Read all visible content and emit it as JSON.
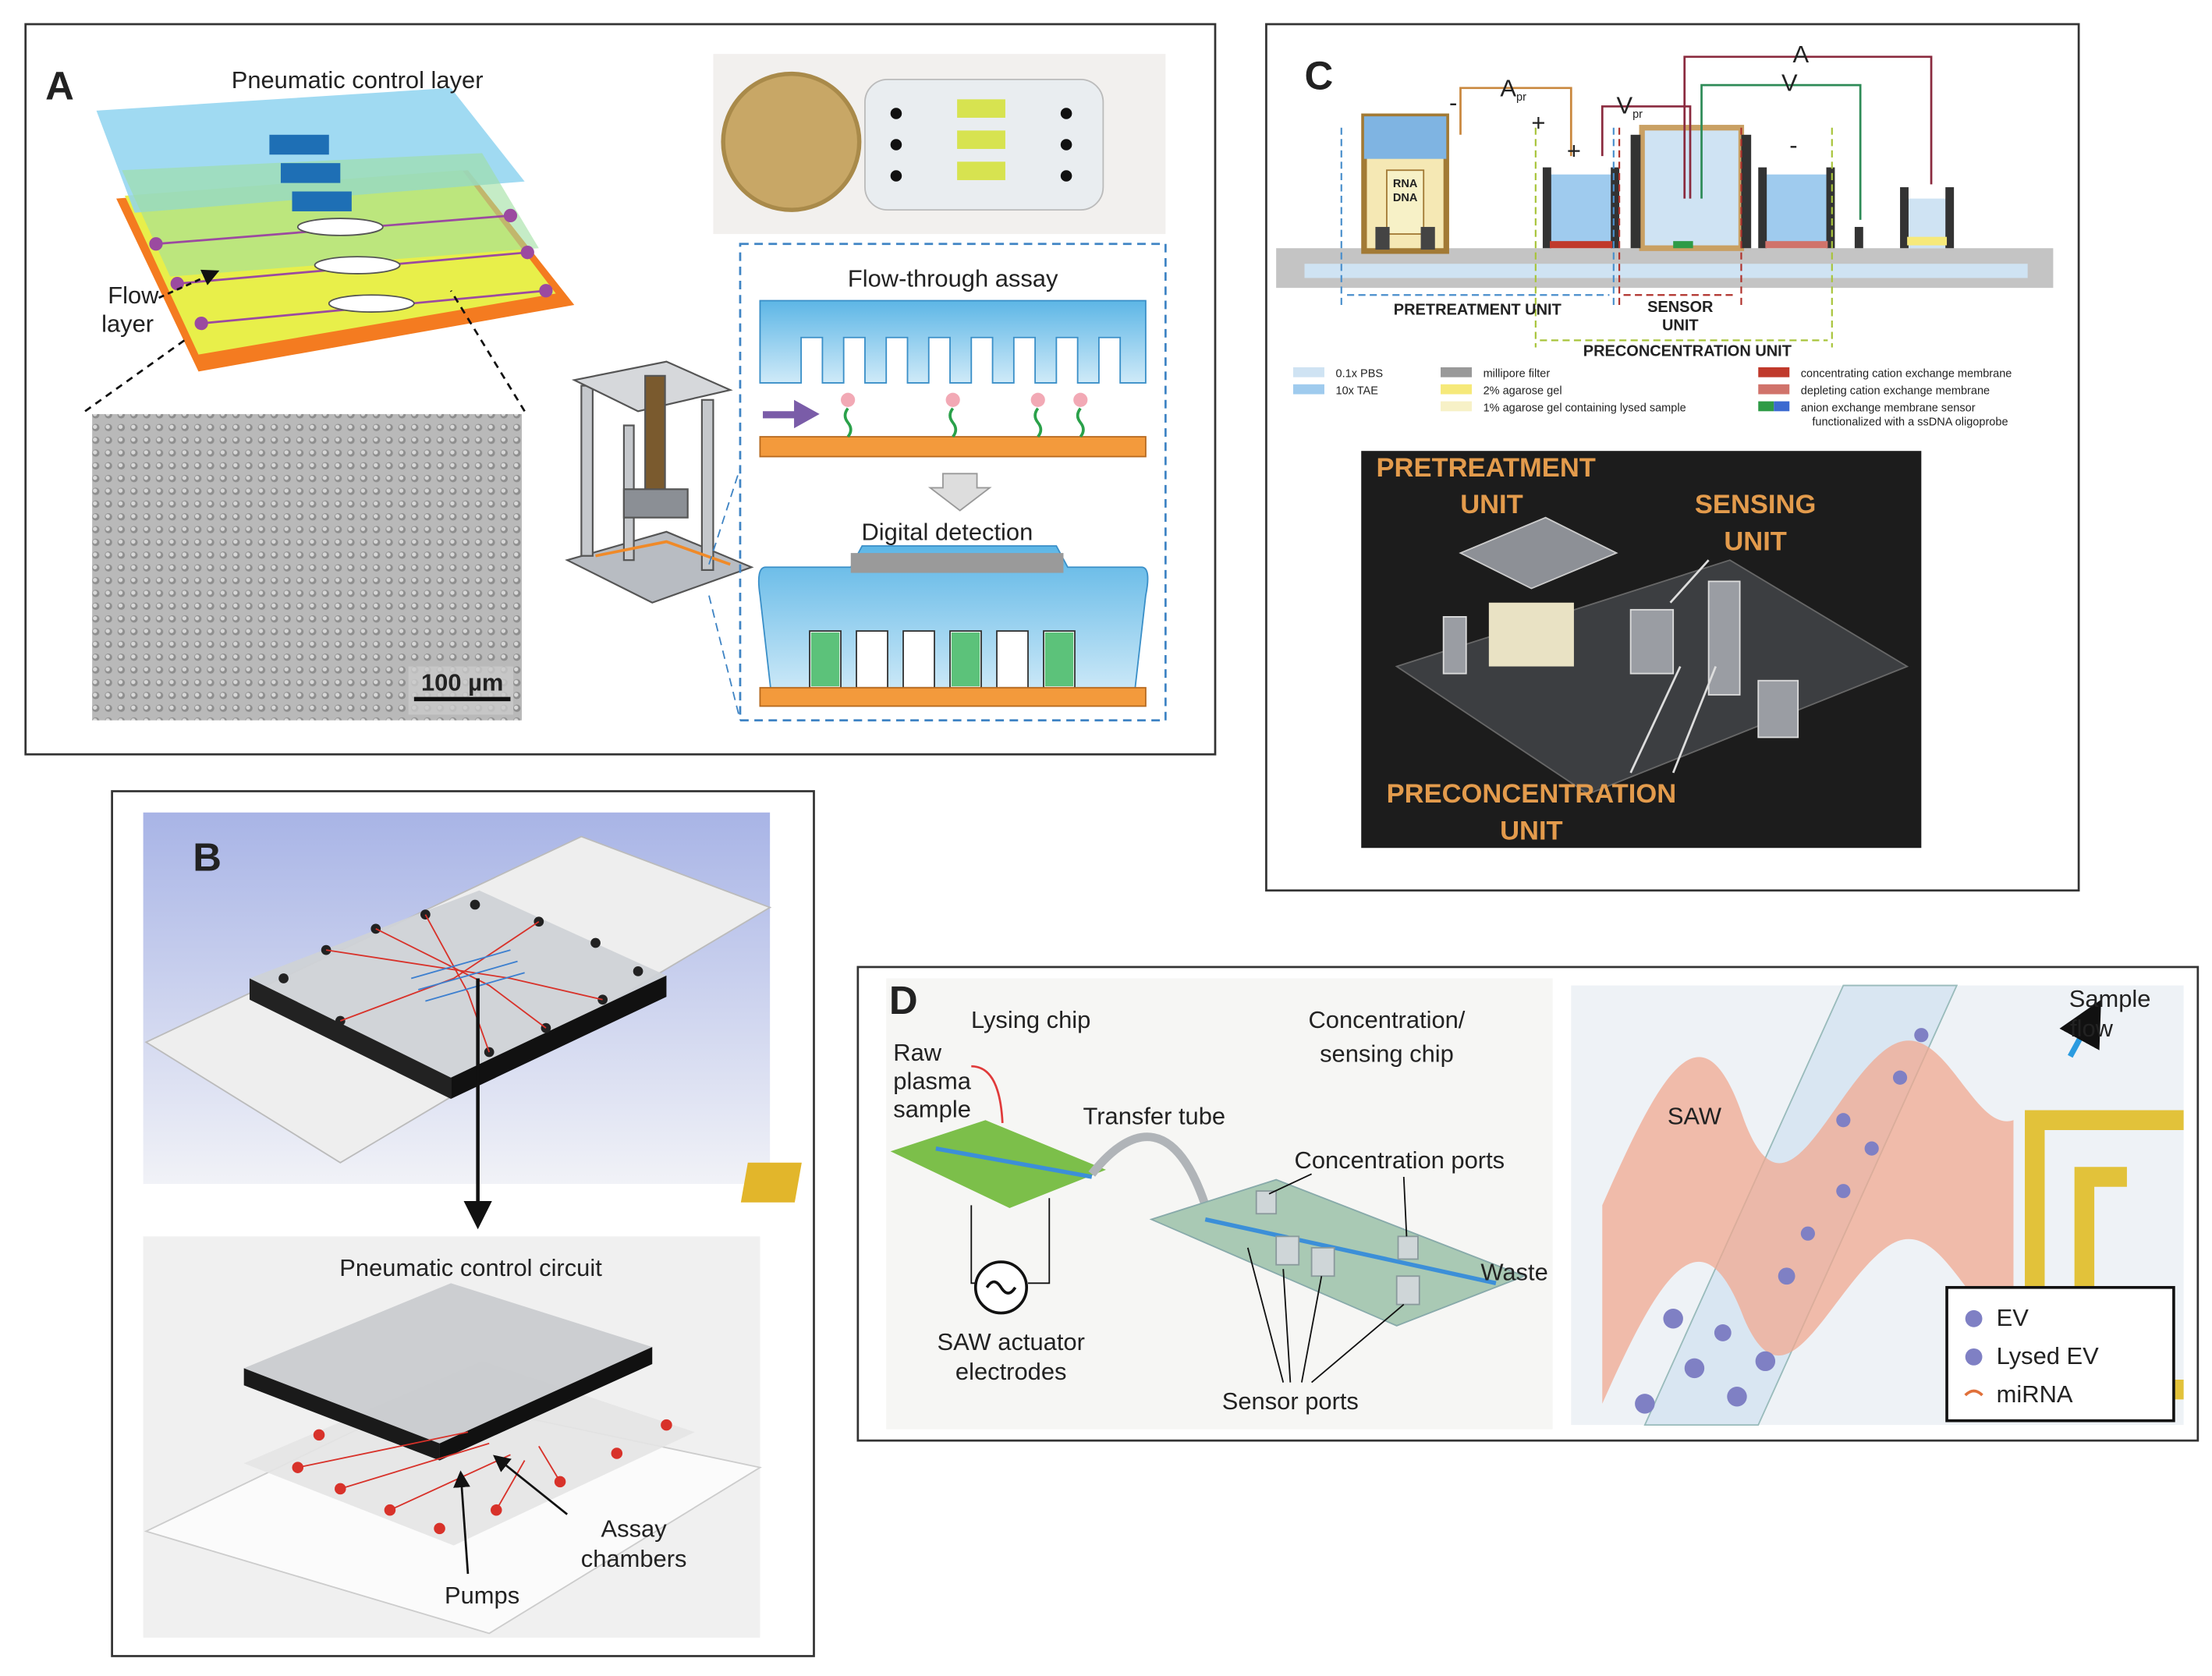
{
  "panels": {
    "a": {
      "letter": "A",
      "pneumatic_layer": "Pneumatic control layer",
      "flow_layer": [
        "Flow",
        "layer"
      ],
      "scale_bar": "100 µm",
      "flow_through": "Flow-through assay",
      "digital_detection": "Digital detection"
    },
    "b": {
      "letter": "B",
      "circuit": "Pneumatic control circuit",
      "assay_chambers": [
        "Assay",
        "chambers"
      ],
      "pumps": "Pumps"
    },
    "c": {
      "letter": "C",
      "a_pr": {
        "main": "A",
        "sub": "pr"
      },
      "v_pr": {
        "main": "V",
        "sub": "pr"
      },
      "a": "A",
      "v": "V",
      "plus": "+",
      "minus": "-",
      "rna": "RNA",
      "dna": "DNA",
      "pretreatment_unit": "PRETREATMENT UNIT",
      "sensor_unit": [
        "SENSOR",
        "UNIT"
      ],
      "preconcentration_unit": "PRECONCENTRATION UNIT",
      "legend": [
        "0.1x PBS",
        "10x TAE",
        "millipore filter",
        "2% agarose gel",
        "1% agarose gel containing lysed sample",
        "concentrating cation exchange membrane",
        "depleting cation exchange membrane",
        [
          "anion exchange membrane sensor",
          "functionalized with a ssDNA oligoprobe"
        ]
      ],
      "photo_pretreatment": [
        "PRETREATMENT",
        "UNIT"
      ],
      "photo_sensing": [
        "SENSING",
        "UNIT"
      ],
      "photo_preconcentration": [
        "PRECONCENTRATION",
        "UNIT"
      ]
    },
    "d": {
      "letter": "D",
      "lysing_chip": "Lysing chip",
      "concentration_chip": [
        "Concentration/",
        "sensing chip"
      ],
      "raw_plasma": [
        "Raw",
        "plasma",
        "sample"
      ],
      "transfer_tube": "Transfer tube",
      "concentration_ports": "Concentration ports",
      "waste": "Waste",
      "saw_electrodes": [
        "SAW actuator",
        "electrodes"
      ],
      "sensor_ports": "Sensor ports",
      "saw": "SAW",
      "sample_flow": [
        "Sample",
        "flow"
      ],
      "legend": [
        "EV",
        "Lysed EV",
        "miRNA"
      ]
    }
  }
}
